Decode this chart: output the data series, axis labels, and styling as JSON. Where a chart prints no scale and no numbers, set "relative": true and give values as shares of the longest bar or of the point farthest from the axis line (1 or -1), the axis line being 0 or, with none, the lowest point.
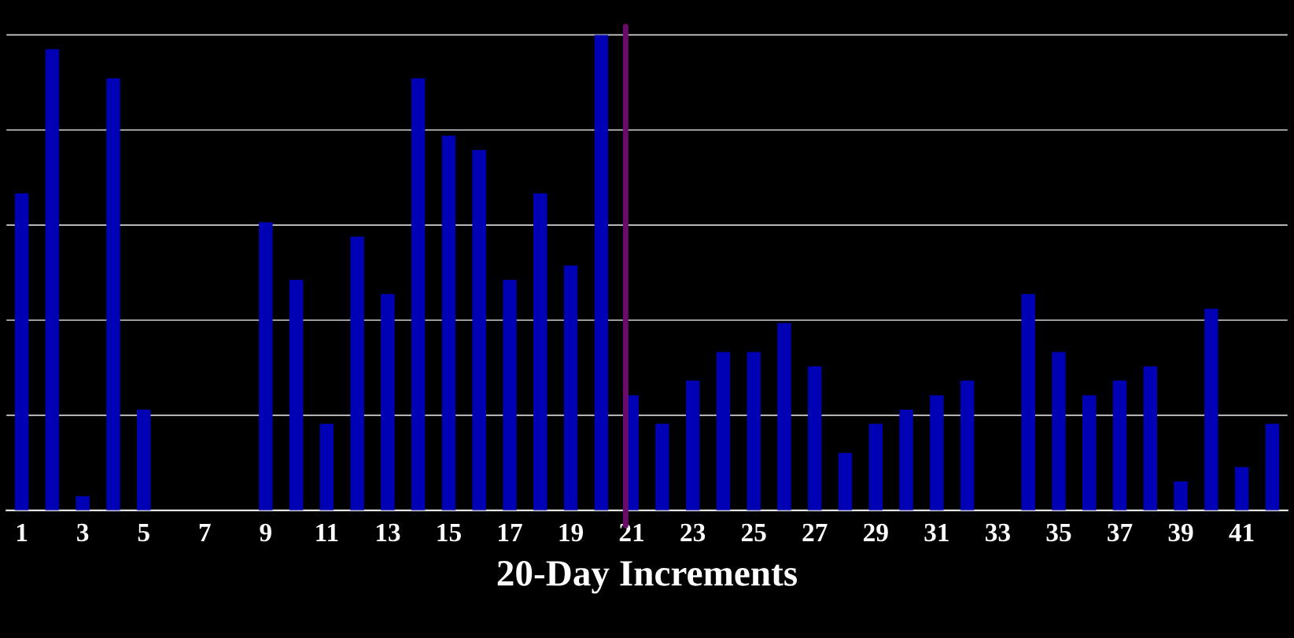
{
  "chart_data": {
    "type": "bar",
    "xlabel": "20-Day Increments",
    "relative": true,
    "color": "#0000b4",
    "x": [
      1,
      2,
      3,
      4,
      5,
      6,
      7,
      8,
      9,
      10,
      11,
      12,
      13,
      14,
      15,
      16,
      17,
      18,
      19,
      20,
      21,
      22,
      23,
      24,
      25,
      26,
      27,
      28,
      29,
      30,
      31,
      32,
      33,
      34,
      35,
      36,
      37,
      38,
      39,
      40,
      41,
      42
    ],
    "values": [
      0.667,
      0.97,
      0.03,
      0.909,
      0.212,
      0,
      0,
      0,
      0.606,
      0.485,
      0.182,
      0.576,
      0.455,
      0.909,
      0.788,
      0.758,
      0.485,
      0.667,
      0.515,
      1,
      0.242,
      0.182,
      0.273,
      0.333,
      0.333,
      0.394,
      0.303,
      0.121,
      0.182,
      0.212,
      0.242,
      0.273,
      0,
      0.455,
      0.333,
      0.242,
      0.273,
      0.303,
      0.061,
      0.424,
      0.091,
      0.182
    ],
    "xlim": [
      0.5,
      42.5
    ],
    "xticks": [
      1,
      3,
      5,
      7,
      9,
      11,
      13,
      15,
      17,
      19,
      21,
      23,
      25,
      27,
      29,
      31,
      33,
      35,
      37,
      39,
      41
    ],
    "ref_lines": [
      {
        "axis": "x",
        "value": 20.8,
        "color": "#6a0a6a"
      }
    ],
    "grid": "y"
  }
}
